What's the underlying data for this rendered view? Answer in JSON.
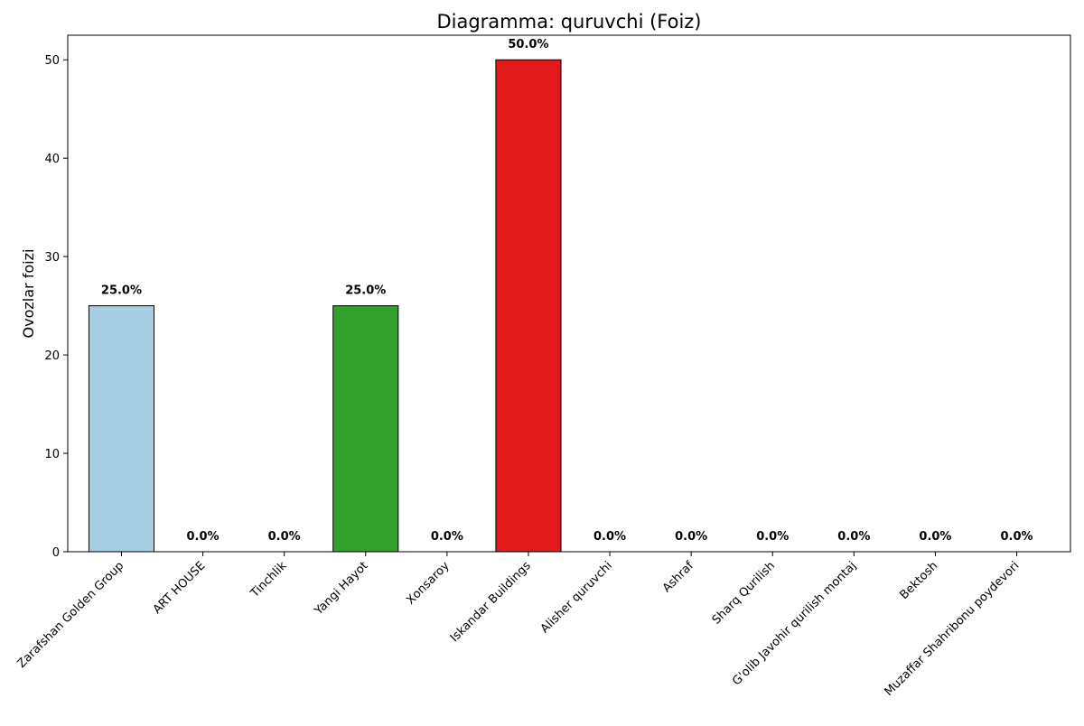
{
  "chart_data": {
    "type": "bar",
    "title": "Diagramma: quruvchi (Foiz)",
    "xlabel": "",
    "ylabel": "Ovozlar foizi",
    "ylim": [
      0,
      52.5
    ],
    "yticks": [
      0,
      10,
      20,
      30,
      40,
      50
    ],
    "grid": false,
    "categories": [
      "Zarafshan Golden Group",
      "ART HOUSE",
      "Tinchlik",
      "Yangi Hayot",
      "Xonsaroy",
      "Iskandar Buildings",
      "Alisher quruvchi",
      "Ashraf",
      "Sharq Qurilish",
      "G'olib Javohir qurilish montaj",
      "Bektosh",
      "Muzaffar Shahribonu poydevori"
    ],
    "values": [
      25.0,
      0.0,
      0.0,
      25.0,
      0.0,
      50.0,
      0.0,
      0.0,
      0.0,
      0.0,
      0.0,
      0.0
    ],
    "data_labels": [
      "25.0%",
      "0.0%",
      "0.0%",
      "25.0%",
      "0.0%",
      "50.0%",
      "0.0%",
      "0.0%",
      "0.0%",
      "0.0%",
      "0.0%",
      "0.0%"
    ],
    "colors": [
      "#a6cee3",
      "#1f78b4",
      "#b2df8a",
      "#33a02c",
      "#fb9a99",
      "#e31a1c",
      "#fdbf6f",
      "#ff7f00",
      "#cab2d6",
      "#6a3d9a",
      "#ffff99",
      "#b15928"
    ]
  }
}
